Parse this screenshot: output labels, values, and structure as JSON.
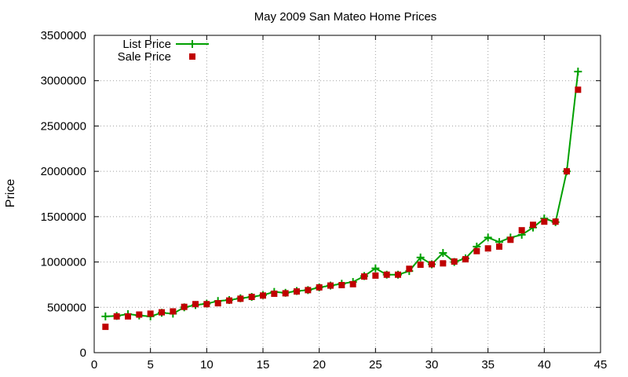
{
  "chart_data": {
    "type": "line",
    "title": "May 2009 San Mateo Home Prices",
    "xlabel": "",
    "ylabel": "Price",
    "xlim": [
      0,
      45
    ],
    "ylim": [
      0,
      3500000
    ],
    "xticks": [
      "0",
      "5",
      "10",
      "15",
      "20",
      "25",
      "30",
      "35",
      "40",
      "45"
    ],
    "yticks": [
      "0",
      "500000",
      "1000000",
      "1500000",
      "2000000",
      "2500000",
      "3000000",
      "3500000"
    ],
    "grid": true,
    "legend_position": "top-left",
    "series": [
      {
        "name": "List Price",
        "style": "line-plus",
        "color": "#00a000",
        "x": [
          1,
          2,
          3,
          4,
          5,
          6,
          7,
          8,
          9,
          10,
          11,
          12,
          13,
          14,
          15,
          16,
          17,
          18,
          19,
          20,
          21,
          22,
          23,
          24,
          25,
          26,
          27,
          28,
          29,
          30,
          31,
          32,
          33,
          34,
          35,
          36,
          37,
          38,
          39,
          40,
          41,
          42,
          43
        ],
        "y": [
          400000,
          405000,
          425000,
          410000,
          400000,
          440000,
          430000,
          500000,
          525000,
          540000,
          570000,
          580000,
          600000,
          615000,
          635000,
          670000,
          660000,
          680000,
          690000,
          720000,
          740000,
          760000,
          780000,
          845000,
          930000,
          860000,
          860000,
          900000,
          1050000,
          975000,
          1100000,
          1000000,
          1040000,
          1170000,
          1270000,
          1220000,
          1270000,
          1300000,
          1380000,
          1480000,
          1440000,
          2000000,
          3100000
        ]
      },
      {
        "name": "Sale Price",
        "style": "points-square",
        "color": "#c00000",
        "x": [
          1,
          2,
          3,
          4,
          5,
          6,
          7,
          8,
          9,
          10,
          11,
          12,
          13,
          14,
          15,
          16,
          17,
          18,
          19,
          20,
          21,
          22,
          23,
          24,
          25,
          26,
          27,
          28,
          29,
          30,
          31,
          32,
          33,
          34,
          35,
          36,
          37,
          38,
          39,
          40,
          41,
          42,
          43
        ],
        "y": [
          285000,
          400000,
          400000,
          420000,
          430000,
          445000,
          455000,
          505000,
          535000,
          535000,
          545000,
          575000,
          595000,
          615000,
          630000,
          650000,
          655000,
          675000,
          690000,
          720000,
          740000,
          745000,
          755000,
          840000,
          850000,
          860000,
          860000,
          925000,
          970000,
          975000,
          985000,
          1005000,
          1030000,
          1120000,
          1150000,
          1170000,
          1245000,
          1350000,
          1410000,
          1445000,
          1445000,
          2000000,
          2900000
        ]
      }
    ]
  }
}
